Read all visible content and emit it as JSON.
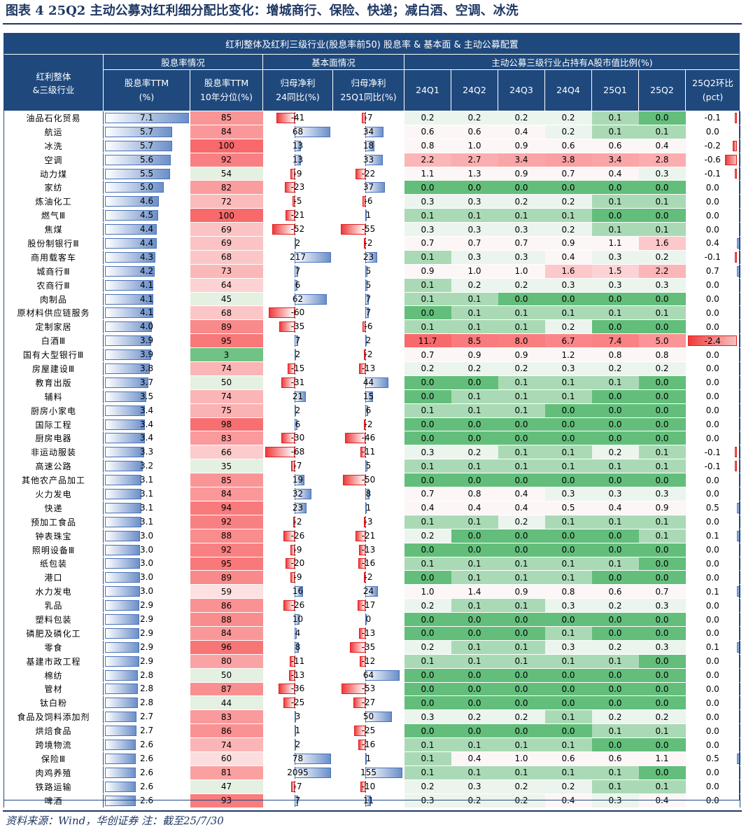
{
  "title": "图表 4   25Q2 主动公募对红利细分配比变化：增城商行、保险、快递；减白酒、空调、冰洗",
  "header": {
    "main": "红利整体及红利三级行业(股息率前50) 股息率 & 基本面 & 主动公募配置",
    "group_div": "股息率情况",
    "group_fund": "基本面情况",
    "group_hold": "主动公募三级行业占持有A股市值比例(%)",
    "col_name": [
      "红利整体",
      "&三级行业"
    ],
    "col_div": [
      "股息率TTM",
      "(%)"
    ],
    "col_pct": [
      "股息率TTM",
      "10年分位(%)"
    ],
    "col_np24": [
      "归母净利",
      "24同比(%)"
    ],
    "col_np25": [
      "归母净利",
      "25Q1同比(%)"
    ],
    "quarters": [
      "24Q1",
      "24Q2",
      "24Q3",
      "24Q4",
      "25Q1",
      "25Q2"
    ],
    "col_chg": [
      "25Q2环比",
      "(pct)"
    ]
  },
  "rows": [
    {
      "name": "油品石化贸易",
      "div": "7.1",
      "pct": "85",
      "np24": "-41",
      "np25": "-7",
      "q": [
        "0.2",
        "0.2",
        "0.2",
        "0.2",
        "0.1",
        "0.0"
      ],
      "chg": "-0.1"
    },
    {
      "name": "航运",
      "div": "5.7",
      "pct": "84",
      "np24": "68",
      "np25": "34",
      "q": [
        "0.6",
        "0.6",
        "0.4",
        "0.2",
        "0.1",
        "0.1"
      ],
      "chg": "0.0"
    },
    {
      "name": "冰洗",
      "div": "5.7",
      "pct": "100",
      "np24": "13",
      "np25": "18",
      "q": [
        "0.8",
        "1.0",
        "0.9",
        "0.6",
        "0.6",
        "0.4"
      ],
      "chg": "-0.2"
    },
    {
      "name": "空调",
      "div": "5.6",
      "pct": "92",
      "np24": "13",
      "np25": "33",
      "q": [
        "2.2",
        "2.7",
        "3.4",
        "3.8",
        "3.4",
        "2.8"
      ],
      "chg": "-0.6"
    },
    {
      "name": "动力煤",
      "div": "5.5",
      "pct": "54",
      "np24": "-9",
      "np25": "-22",
      "q": [
        "1.1",
        "1.3",
        "0.9",
        "0.7",
        "0.4",
        "0.3"
      ],
      "chg": "-0.1"
    },
    {
      "name": "家纺",
      "div": "5.0",
      "pct": "82",
      "np24": "-23",
      "np25": "37",
      "q": [
        "0.0",
        "0.0",
        "0.0",
        "0.0",
        "0.0",
        "0.0"
      ],
      "chg": "0.0"
    },
    {
      "name": "炼油化工",
      "div": "4.6",
      "pct": "72",
      "np24": "-5",
      "np25": "-6",
      "q": [
        "0.3",
        "0.3",
        "0.2",
        "0.2",
        "0.1",
        "0.1"
      ],
      "chg": "0.0"
    },
    {
      "name": "燃气Ⅲ",
      "div": "4.5",
      "pct": "100",
      "np24": "-21",
      "np25": "1",
      "q": [
        "0.1",
        "0.1",
        "0.1",
        "0.1",
        "0.0",
        "0.0"
      ],
      "chg": "0.0"
    },
    {
      "name": "焦煤",
      "div": "4.4",
      "pct": "69",
      "np24": "-52",
      "np25": "-55",
      "q": [
        "0.3",
        "0.3",
        "0.3",
        "0.2",
        "0.1",
        "0.1"
      ],
      "chg": "0.0"
    },
    {
      "name": "股份制银行Ⅲ",
      "div": "4.4",
      "pct": "69",
      "np24": "2",
      "np25": "-2",
      "q": [
        "0.7",
        "0.7",
        "0.7",
        "0.9",
        "1.1",
        "1.6"
      ],
      "chg": "0.4"
    },
    {
      "name": "商用载客车",
      "div": "4.3",
      "pct": "68",
      "np24": "217",
      "np25": "23",
      "q": [
        "0.1",
        "0.3",
        "0.3",
        "0.4",
        "0.3",
        "0.2"
      ],
      "chg": "-0.1"
    },
    {
      "name": "城商行Ⅲ",
      "div": "4.2",
      "pct": "73",
      "np24": "7",
      "np25": "5",
      "q": [
        "0.9",
        "1.0",
        "1.0",
        "1.6",
        "1.5",
        "2.2"
      ],
      "chg": "0.7"
    },
    {
      "name": "农商行Ⅲ",
      "div": "4.1",
      "pct": "64",
      "np24": "6",
      "np25": "5",
      "q": [
        "0.1",
        "0.2",
        "0.2",
        "0.3",
        "0.3",
        "0.3"
      ],
      "chg": "0.0"
    },
    {
      "name": "肉制品",
      "div": "4.1",
      "pct": "45",
      "np24": "62",
      "np25": "7",
      "q": [
        "0.1",
        "0.1",
        "0.0",
        "0.0",
        "0.0",
        "0.0"
      ],
      "chg": "0.0"
    },
    {
      "name": "原材料供应链服务",
      "div": "4.1",
      "pct": "68",
      "np24": "-60",
      "np25": "7",
      "q": [
        "0.0",
        "0.1",
        "0.1",
        "0.1",
        "0.1",
        "0.1"
      ],
      "chg": "0.0"
    },
    {
      "name": "定制家居",
      "div": "4.0",
      "pct": "89",
      "np24": "-35",
      "np25": "-6",
      "q": [
        "0.1",
        "0.1",
        "0.1",
        "0.2",
        "0.0",
        "0.0"
      ],
      "chg": "0.0"
    },
    {
      "name": "白酒Ⅲ",
      "div": "3.9",
      "pct": "95",
      "np24": "7",
      "np25": "2",
      "q": [
        "11.7",
        "8.5",
        "8.0",
        "6.7",
        "7.4",
        "5.0"
      ],
      "chg": "-2.4"
    },
    {
      "name": "国有大型银行Ⅲ",
      "div": "3.9",
      "pct": "3",
      "np24": "2",
      "np25": "-2",
      "q": [
        "0.7",
        "0.9",
        "0.9",
        "1.2",
        "0.8",
        "0.8"
      ],
      "chg": "0.0"
    },
    {
      "name": "房屋建设Ⅲ",
      "div": "3.8",
      "pct": "74",
      "np24": "-15",
      "np25": "-13",
      "q": [
        "0.2",
        "0.2",
        "0.2",
        "0.3",
        "0.2",
        "0.2"
      ],
      "chg": "0.0"
    },
    {
      "name": "教育出版",
      "div": "3.7",
      "pct": "50",
      "np24": "-31",
      "np25": "44",
      "q": [
        "0.0",
        "0.0",
        "0.1",
        "0.1",
        "0.1",
        "0.0"
      ],
      "chg": "0.0"
    },
    {
      "name": "辅料",
      "div": "3.5",
      "pct": "74",
      "np24": "21",
      "np25": "15",
      "q": [
        "0.0",
        "0.1",
        "0.1",
        "0.1",
        "0.0",
        "0.0"
      ],
      "chg": "0.0"
    },
    {
      "name": "厨房小家电",
      "div": "3.4",
      "pct": "75",
      "np24": "2",
      "np25": "6",
      "q": [
        "0.1",
        "0.1",
        "0.1",
        "0.0",
        "0.0",
        "0.0"
      ],
      "chg": "0.0"
    },
    {
      "name": "国际工程",
      "div": "3.4",
      "pct": "98",
      "np24": "6",
      "np25": "-2",
      "q": [
        "0.0",
        "0.0",
        "0.0",
        "0.0",
        "0.0",
        "0.0"
      ],
      "chg": "0.0"
    },
    {
      "name": "厨房电器",
      "div": "3.4",
      "pct": "83",
      "np24": "-30",
      "np25": "-46",
      "q": [
        "0.0",
        "0.0",
        "0.0",
        "0.0",
        "0.0",
        "0.0"
      ],
      "chg": "0.0"
    },
    {
      "name": "非运动服装",
      "div": "3.3",
      "pct": "66",
      "np24": "-68",
      "np25": "-11",
      "q": [
        "0.3",
        "0.2",
        "0.1",
        "0.1",
        "0.2",
        "0.1"
      ],
      "chg": "-0.1"
    },
    {
      "name": "高速公路",
      "div": "3.2",
      "pct": "35",
      "np24": "-7",
      "np25": "5",
      "q": [
        "0.1",
        "0.1",
        "0.1",
        "0.1",
        "0.1",
        "0.1"
      ],
      "chg": "-0.1"
    },
    {
      "name": "其他农产品加工",
      "div": "3.1",
      "pct": "85",
      "np24": "19",
      "np25": "-50",
      "q": [
        "0.0",
        "0.0",
        "0.0",
        "0.0",
        "0.0",
        "0.0"
      ],
      "chg": "0.0"
    },
    {
      "name": "火力发电",
      "div": "3.1",
      "pct": "84",
      "np24": "32",
      "np25": "8",
      "q": [
        "0.7",
        "0.8",
        "0.4",
        "0.3",
        "0.3",
        "0.3"
      ],
      "chg": "0.0"
    },
    {
      "name": "快递",
      "div": "3.1",
      "pct": "94",
      "np24": "23",
      "np25": "1",
      "q": [
        "0.4",
        "0.4",
        "0.4",
        "0.5",
        "0.4",
        "0.9"
      ],
      "chg": "0.5"
    },
    {
      "name": "预加工食品",
      "div": "3.1",
      "pct": "92",
      "np24": "-2",
      "np25": "-3",
      "q": [
        "0.1",
        "0.1",
        "0.2",
        "0.1",
        "0.1",
        "0.1"
      ],
      "chg": "0.0"
    },
    {
      "name": "钟表珠宝",
      "div": "3.0",
      "pct": "88",
      "np24": "-26",
      "np25": "-21",
      "q": [
        "0.2",
        "0.0",
        "0.0",
        "0.0",
        "0.0",
        "0.1"
      ],
      "chg": "0.1"
    },
    {
      "name": "照明设备Ⅲ",
      "div": "3.0",
      "pct": "92",
      "np24": "-9",
      "np25": "-13",
      "q": [
        "0.0",
        "0.0",
        "0.0",
        "0.0",
        "0.0",
        "0.0"
      ],
      "chg": "0.0"
    },
    {
      "name": "纸包装",
      "div": "3.0",
      "pct": "95",
      "np24": "-20",
      "np25": "-16",
      "q": [
        "0.1",
        "0.1",
        "0.1",
        "0.1",
        "0.1",
        "0.0"
      ],
      "chg": "0.0"
    },
    {
      "name": "港口",
      "div": "3.0",
      "pct": "89",
      "np24": "-9",
      "np25": "-2",
      "q": [
        "0.0",
        "0.1",
        "0.1",
        "0.1",
        "0.0",
        "0.0"
      ],
      "chg": "0.0"
    },
    {
      "name": "水力发电",
      "div": "3.0",
      "pct": "59",
      "np24": "16",
      "np25": "24",
      "q": [
        "1.0",
        "1.4",
        "0.9",
        "0.8",
        "0.6",
        "0.7"
      ],
      "chg": "0.1"
    },
    {
      "name": "乳品",
      "div": "2.9",
      "pct": "86",
      "np24": "-26",
      "np25": "-17",
      "q": [
        "0.2",
        "0.1",
        "0.1",
        "0.3",
        "0.2",
        "0.3"
      ],
      "chg": "0.0"
    },
    {
      "name": "塑料包装",
      "div": "2.9",
      "pct": "88",
      "np24": "10",
      "np25": "0",
      "q": [
        "0.0",
        "0.0",
        "0.0",
        "0.0",
        "0.0",
        "0.0"
      ],
      "chg": "0.0"
    },
    {
      "name": "磷肥及磷化工",
      "div": "2.9",
      "pct": "84",
      "np24": "4",
      "np25": "-13",
      "q": [
        "0.0",
        "0.0",
        "0.0",
        "0.1",
        "0.0",
        "0.0"
      ],
      "chg": "0.0"
    },
    {
      "name": "零食",
      "div": "2.9",
      "pct": "96",
      "np24": "8",
      "np25": "-35",
      "q": [
        "0.2",
        "0.1",
        "0.1",
        "0.3",
        "0.2",
        "0.3"
      ],
      "chg": "0.1"
    },
    {
      "name": "基建市政工程",
      "div": "2.9",
      "pct": "80",
      "np24": "-11",
      "np25": "-12",
      "q": [
        "0.1",
        "0.1",
        "0.1",
        "0.1",
        "0.1",
        "0.0"
      ],
      "chg": "0.0"
    },
    {
      "name": "棉纺",
      "div": "2.8",
      "pct": "50",
      "np24": "-13",
      "np25": "64",
      "q": [
        "0.0",
        "0.0",
        "0.0",
        "0.0",
        "0.0",
        "0.0"
      ],
      "chg": "0.0"
    },
    {
      "name": "管材",
      "div": "2.8",
      "pct": "87",
      "np24": "-36",
      "np25": "-53",
      "q": [
        "0.0",
        "0.0",
        "0.0",
        "0.0",
        "0.0",
        "0.0"
      ],
      "chg": "0.0"
    },
    {
      "name": "钛白粉",
      "div": "2.8",
      "pct": "44",
      "np24": "-25",
      "np25": "-27",
      "q": [
        "0.0",
        "0.0",
        "0.0",
        "0.0",
        "0.0",
        "0.0"
      ],
      "chg": "0.0"
    },
    {
      "name": "食品及饲料添加剂",
      "div": "2.7",
      "pct": "83",
      "np24": "3",
      "np25": "50",
      "q": [
        "0.3",
        "0.2",
        "0.2",
        "0.1",
        "0.2",
        "0.2"
      ],
      "chg": "0.0"
    },
    {
      "name": "烘焙食品",
      "div": "2.7",
      "pct": "86",
      "np24": "1",
      "np25": "-25",
      "q": [
        "0.0",
        "0.0",
        "0.0",
        "0.0",
        "0.1",
        "0.1"
      ],
      "chg": "0.0"
    },
    {
      "name": "跨境物流",
      "div": "2.6",
      "pct": "74",
      "np24": "2",
      "np25": "-16",
      "q": [
        "0.1",
        "0.1",
        "0.1",
        "0.1",
        "0.0",
        "0.0"
      ],
      "chg": "0.0"
    },
    {
      "name": "保险Ⅲ",
      "div": "2.6",
      "pct": "60",
      "np24": "78",
      "np25": "1",
      "q": [
        "0.1",
        "0.4",
        "1.0",
        "0.6",
        "0.6",
        "1.1"
      ],
      "chg": "0.5"
    },
    {
      "name": "肉鸡养殖",
      "div": "2.6",
      "pct": "81",
      "np24": "2095",
      "np25": "155",
      "q": [
        "0.1",
        "0.1",
        "0.1",
        "0.1",
        "0.1",
        "0.0"
      ],
      "chg": "0.0"
    },
    {
      "name": "铁路运输",
      "div": "2.6",
      "pct": "47",
      "np24": "-7",
      "np25": "-10",
      "q": [
        "0.2",
        "0.3",
        "0.2",
        "0.2",
        "0.1",
        "0.1"
      ],
      "chg": "0.0"
    },
    {
      "name": "啤酒",
      "div": "2.6",
      "pct": "93",
      "np24": "7",
      "np25": "11",
      "q": [
        "0.3",
        "0.2",
        "0.2",
        "0.4",
        "0.3",
        "0.4"
      ],
      "chg": "0.0"
    }
  ],
  "source": "资料来源：Wind，华创证券  注：截至25/7/30"
}
